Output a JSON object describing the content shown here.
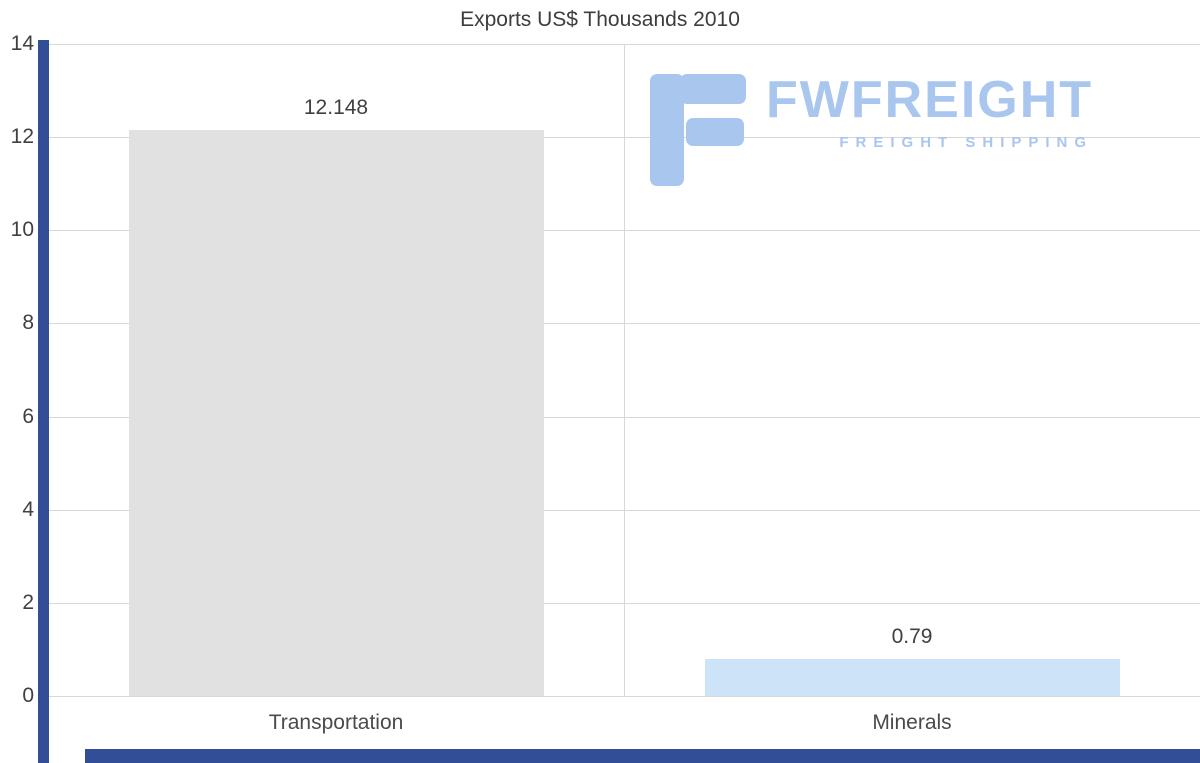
{
  "title": "Exports US$ Thousands 2010",
  "logo": {
    "wordmark": "FWFREIGHT",
    "tagline": "FREIGHT SHIPPING",
    "color": "#a9c6ef"
  },
  "chart_data": {
    "type": "bar",
    "title": "Exports US$ Thousands 2010",
    "categories": [
      "Transportation",
      "Minerals"
    ],
    "values": [
      12.148,
      0.79
    ],
    "value_labels": [
      "12.148",
      "0.79"
    ],
    "bar_colors": [
      "#e1e1e1",
      "#cde4f8"
    ],
    "xlabel": "",
    "ylabel": "",
    "ylim": [
      0,
      14
    ],
    "yticks": [
      0,
      2,
      4,
      6,
      8,
      10,
      12,
      14
    ],
    "grid": true,
    "legend": false,
    "gridline_color": "#d8d8d8",
    "axis_color": "#314e96"
  }
}
